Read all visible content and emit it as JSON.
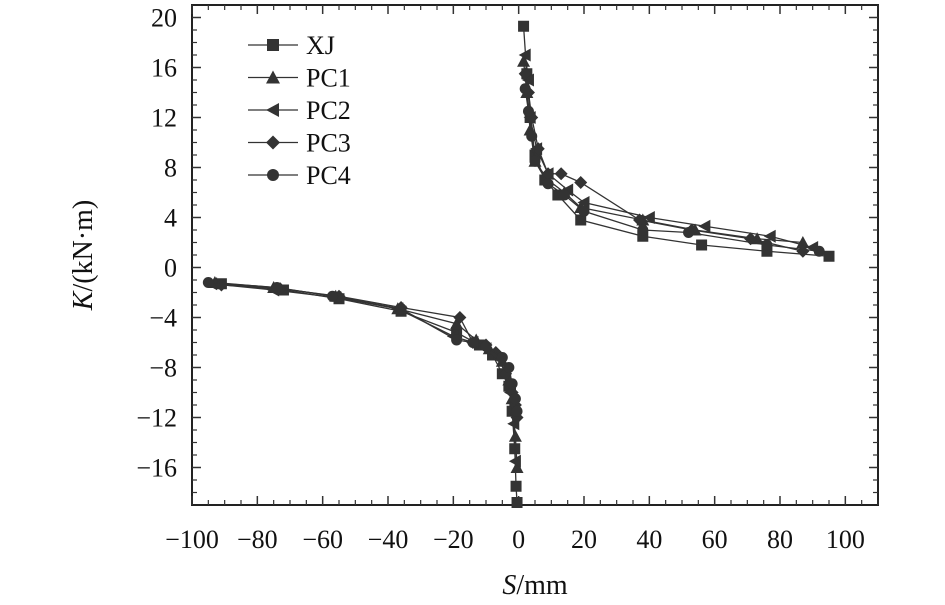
{
  "chart_data": {
    "type": "line",
    "xlabel": {
      "var": "S",
      "unit": "/mm"
    },
    "ylabel": {
      "var": "K",
      "unit": "/(kN·m)"
    },
    "xlim": [
      -100,
      110
    ],
    "ylim": [
      -19,
      21
    ],
    "xticks": [
      -100,
      -80,
      -60,
      -40,
      -20,
      0,
      20,
      40,
      60,
      80,
      100
    ],
    "xtick_labels": [
      "−100",
      "−80",
      "−60",
      "−40",
      "−20",
      "0",
      "20",
      "40",
      "60",
      "80",
      "100"
    ],
    "yticks": [
      -16,
      -12,
      -8,
      -4,
      0,
      4,
      8,
      12,
      16,
      20
    ],
    "ytick_labels": [
      "−16",
      "−12",
      "−8",
      "−4",
      "0",
      "4",
      "8",
      "12",
      "16",
      "20"
    ],
    "grid": false,
    "legend_position": "top-left",
    "line_color": "#333333",
    "series": [
      {
        "name": "XJ",
        "marker": "square",
        "positive": [
          [
            1.5,
            19.3
          ],
          [
            2.5,
            15.5
          ],
          [
            3.5,
            12
          ],
          [
            5,
            9
          ],
          [
            8,
            7
          ],
          [
            12,
            5.8
          ],
          [
            19,
            3.8
          ],
          [
            38,
            2.5
          ],
          [
            56,
            1.8
          ],
          [
            76,
            1.3
          ],
          [
            95,
            0.9
          ]
        ],
        "negative": [
          [
            -0.5,
            -18.8
          ],
          [
            -0.8,
            -17.5
          ],
          [
            -1.2,
            -14.5
          ],
          [
            -2,
            -11.5
          ],
          [
            -3,
            -9.5
          ],
          [
            -5,
            -8.5
          ],
          [
            -8,
            -7
          ],
          [
            -12,
            -6.2
          ],
          [
            -19,
            -5.2
          ],
          [
            -36,
            -3.5
          ],
          [
            -55,
            -2.5
          ],
          [
            -72,
            -1.8
          ],
          [
            -91,
            -1.3
          ]
        ]
      },
      {
        "name": "PC1",
        "marker": "triangle",
        "positive": [
          [
            1.5,
            16.5
          ],
          [
            2.5,
            14
          ],
          [
            3.5,
            11
          ],
          [
            5,
            8.5
          ],
          [
            9,
            7
          ],
          [
            14,
            6
          ],
          [
            19,
            4.8
          ],
          [
            38,
            3.8
          ],
          [
            54,
            3
          ],
          [
            73,
            2.3
          ],
          [
            87,
            2
          ]
        ],
        "negative": [
          [
            -0.5,
            -16
          ],
          [
            -1,
            -13.5
          ],
          [
            -2,
            -10.5
          ],
          [
            -3,
            -9
          ],
          [
            -5,
            -7.5
          ],
          [
            -9,
            -6.5
          ],
          [
            -13,
            -5.8
          ],
          [
            -19,
            -4.5
          ],
          [
            -37,
            -3.3
          ],
          [
            -56,
            -2.3
          ],
          [
            -75,
            -1.6
          ],
          [
            -93,
            -1.2
          ]
        ]
      },
      {
        "name": "PC2",
        "marker": "triangle-left",
        "positive": [
          [
            2,
            17
          ],
          [
            3,
            15
          ],
          [
            3.5,
            12
          ],
          [
            5.5,
            9.5
          ],
          [
            9,
            7.5
          ],
          [
            15,
            6.2
          ],
          [
            20,
            5.2
          ],
          [
            40,
            4
          ],
          [
            57,
            3.3
          ],
          [
            77,
            2.5
          ],
          [
            90,
            1.6
          ]
        ],
        "negative": [
          [
            -1,
            -15.5
          ],
          [
            -1.5,
            -12.5
          ],
          [
            -2.5,
            -10
          ],
          [
            -4,
            -8.5
          ],
          [
            -6,
            -7.3
          ],
          [
            -10,
            -6.5
          ],
          [
            -14,
            -6
          ],
          [
            -20,
            -5.5
          ],
          [
            -37,
            -3.3
          ],
          [
            -56,
            -2.4
          ],
          [
            -75,
            -1.8
          ],
          [
            -94,
            -1.3
          ]
        ]
      },
      {
        "name": "PC3",
        "marker": "diamond",
        "positive": [
          [
            2,
            15.5
          ],
          [
            3,
            14
          ],
          [
            4,
            12
          ],
          [
            6,
            9.5
          ],
          [
            9,
            7.5
          ],
          [
            13,
            7.5
          ],
          [
            19,
            6.8
          ],
          [
            37,
            3.8
          ],
          [
            53,
            3
          ],
          [
            71,
            2.3
          ],
          [
            87,
            1.3
          ]
        ],
        "negative": [
          [
            -0.5,
            -12
          ],
          [
            -1,
            -11
          ],
          [
            -2,
            -10
          ],
          [
            -4,
            -8.5
          ],
          [
            -7,
            -6.8
          ],
          [
            -10,
            -6.2
          ],
          [
            -14,
            -6
          ],
          [
            -18,
            -4
          ],
          [
            -36,
            -3.2
          ],
          [
            -55,
            -2.3
          ],
          [
            -73,
            -1.7
          ],
          [
            -91,
            -1.4
          ]
        ]
      },
      {
        "name": "PC4",
        "marker": "circle",
        "positive": [
          [
            2,
            14.3
          ],
          [
            3,
            12.5
          ],
          [
            4,
            10.5
          ],
          [
            5,
            8.5
          ],
          [
            9,
            6.7
          ],
          [
            14,
            5.8
          ],
          [
            20,
            4.5
          ],
          [
            38,
            3
          ],
          [
            52,
            2.8
          ],
          [
            76,
            1.8
          ],
          [
            92,
            1.3
          ]
        ],
        "negative": [
          [
            -0.5,
            -11.5
          ],
          [
            -1,
            -10.5
          ],
          [
            -2,
            -9.3
          ],
          [
            -3,
            -8
          ],
          [
            -5,
            -7.2
          ],
          [
            -10,
            -6.3
          ],
          [
            -14,
            -6
          ],
          [
            -19,
            -5.8
          ],
          [
            -36,
            -3.3
          ],
          [
            -57,
            -2.3
          ],
          [
            -74,
            -1.6
          ],
          [
            -95,
            -1.2
          ]
        ]
      }
    ]
  }
}
